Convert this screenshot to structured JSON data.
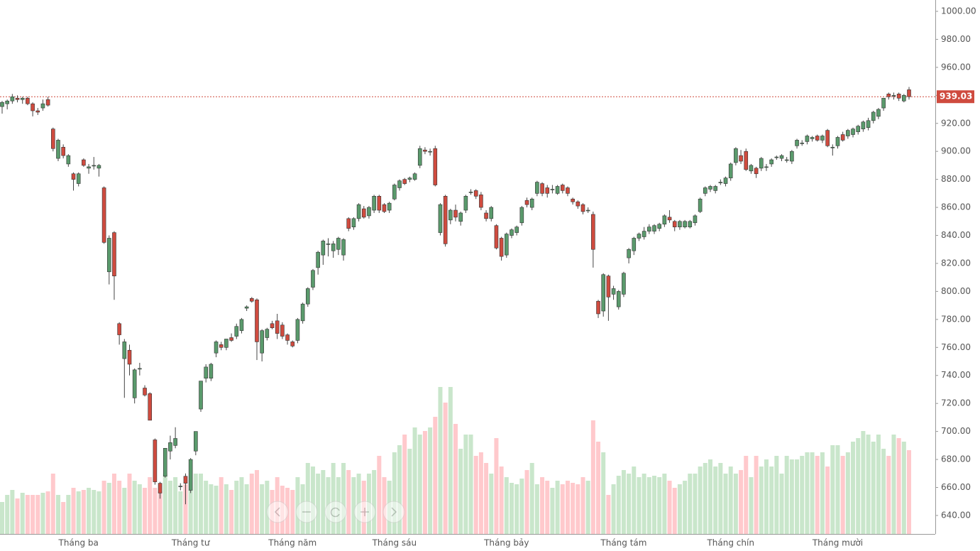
{
  "chart_data": {
    "type": "candlestick",
    "ylim": [
      626.8,
      1008.1
    ],
    "yticks": [
      {
        "value": 640,
        "label": "640.00"
      },
      {
        "value": 660,
        "label": "660.00"
      },
      {
        "value": 680,
        "label": "680.00"
      },
      {
        "value": 700,
        "label": "700.00"
      },
      {
        "value": 720,
        "label": "720.00"
      },
      {
        "value": 740,
        "label": "740.00"
      },
      {
        "value": 760,
        "label": "760.00"
      },
      {
        "value": 780,
        "label": "780.00"
      },
      {
        "value": 800,
        "label": "800.00"
      },
      {
        "value": 820,
        "label": "820.00"
      },
      {
        "value": 840,
        "label": "840.00"
      },
      {
        "value": 860,
        "label": "860.00"
      },
      {
        "value": 880,
        "label": "880.00"
      },
      {
        "value": 900,
        "label": "900.00"
      },
      {
        "value": 920,
        "label": "920.00"
      },
      {
        "value": 940,
        "label": "940.00"
      },
      {
        "value": 960,
        "label": "960.00"
      },
      {
        "value": 980,
        "label": "980.00"
      },
      {
        "value": 1000,
        "label": "1000.00"
      }
    ],
    "up_color": "#5a9a6c",
    "down_color": "#cf4b3f",
    "volume_up_color": "#c9e6cb",
    "volume_down_color": "#ffc9cc",
    "last_price_line": true,
    "categories": [
      null,
      null,
      null,
      null,
      null,
      null,
      null,
      null,
      null,
      null,
      null,
      null,
      null,
      null,
      null,
      "Tháng ba",
      null,
      null,
      null,
      null,
      null,
      null,
      null,
      null,
      null,
      null,
      null,
      null,
      null,
      null,
      null,
      null,
      null,
      null,
      null,
      null,
      null,
      "Tháng tư",
      null,
      null,
      null,
      null,
      null,
      null,
      null,
      null,
      null,
      null,
      null,
      null,
      null,
      null,
      null,
      null,
      null,
      null,
      null,
      "Tháng năm",
      null,
      null,
      null,
      null,
      null,
      null,
      null,
      null,
      null,
      null,
      null,
      null,
      null,
      null,
      null,
      null,
      null,
      null,
      null,
      "Tháng sáu",
      null,
      null,
      null,
      null,
      null,
      null,
      null,
      null,
      null,
      null,
      null,
      null,
      null,
      null,
      null,
      null,
      null,
      null,
      null,
      null,
      null,
      "Tháng bảy",
      null,
      null,
      null,
      null,
      null,
      null,
      null,
      null,
      null,
      null,
      null,
      null,
      null,
      null,
      null,
      null,
      null,
      null,
      null,
      null,
      null,
      null,
      "Tháng tám",
      null,
      null,
      null,
      null,
      null,
      null,
      null,
      null,
      null,
      null,
      null,
      null,
      null,
      null,
      null,
      null,
      null,
      null,
      null,
      null,
      "Tháng chín",
      null,
      null,
      null,
      null,
      null,
      null,
      null,
      null,
      null,
      null,
      null,
      null,
      null,
      null,
      null,
      null,
      null,
      null,
      null,
      null,
      "Tháng mười",
      null,
      null,
      null,
      null,
      null,
      null,
      null,
      null,
      null,
      null,
      null,
      null,
      null,
      null
    ],
    "ohlc": [
      [
        932,
        936,
        927,
        935
      ],
      [
        934,
        937,
        930,
        936
      ],
      [
        936,
        941,
        934,
        939
      ],
      [
        938,
        940,
        935,
        937
      ],
      [
        937,
        939,
        934,
        938
      ],
      [
        938,
        939,
        933,
        934
      ],
      [
        934,
        935,
        925,
        929
      ],
      [
        929,
        931,
        926,
        928
      ],
      [
        931,
        937,
        929,
        934
      ],
      [
        937,
        939,
        932,
        933
      ],
      [
        916,
        917,
        900,
        902
      ],
      [
        895,
        909,
        893,
        908
      ],
      [
        903,
        905,
        895,
        897
      ],
      [
        891,
        898,
        889,
        897
      ],
      [
        884,
        885,
        872,
        880
      ],
      [
        877,
        885,
        875,
        884
      ],
      [
        894,
        895,
        889,
        890
      ],
      [
        888,
        891,
        884,
        889
      ],
      [
        890,
        896,
        887,
        890
      ],
      [
        888,
        891,
        882,
        890
      ],
      [
        874,
        875,
        834,
        835
      ],
      [
        814,
        840,
        805,
        838
      ],
      [
        842,
        843,
        794,
        811
      ],
      [
        777,
        778,
        762,
        769
      ],
      [
        752,
        766,
        724,
        764
      ],
      [
        758,
        762,
        740,
        748
      ],
      [
        724,
        745,
        720,
        744
      ],
      [
        745,
        749,
        740,
        745
      ],
      [
        731,
        733,
        725,
        726
      ],
      [
        727,
        728,
        708,
        708
      ],
      [
        694,
        695,
        662,
        664
      ],
      [
        663,
        664,
        652,
        656
      ],
      [
        668,
        688,
        667,
        688
      ],
      [
        686,
        697,
        680,
        692
      ],
      [
        690,
        703,
        688,
        695
      ],
      [
        661,
        663,
        658,
        661
      ],
      [
        668,
        670,
        648,
        663
      ],
      [
        658,
        681,
        656,
        680
      ],
      [
        686,
        700,
        683,
        700
      ],
      [
        716,
        736,
        714,
        736
      ],
      [
        738,
        748,
        735,
        746
      ],
      [
        738,
        749,
        736,
        748
      ],
      [
        756,
        765,
        753,
        764
      ],
      [
        762,
        764,
        758,
        760
      ],
      [
        760,
        766,
        758,
        766
      ],
      [
        767,
        770,
        764,
        765
      ],
      [
        768,
        777,
        766,
        775
      ],
      [
        772,
        781,
        770,
        780
      ],
      [
        788,
        790,
        786,
        789
      ],
      [
        795,
        796,
        792,
        793
      ],
      [
        794,
        795,
        751,
        764
      ],
      [
        756,
        773,
        750,
        772
      ],
      [
        767,
        774,
        765,
        773
      ],
      [
        777,
        779,
        773,
        774
      ],
      [
        779,
        784,
        766,
        770
      ],
      [
        776,
        778,
        766,
        768
      ],
      [
        769,
        770,
        762,
        765
      ],
      [
        764,
        765,
        760,
        761
      ],
      [
        765,
        781,
        763,
        780
      ],
      [
        779,
        792,
        777,
        791
      ],
      [
        791,
        803,
        789,
        802
      ],
      [
        803,
        816,
        801,
        815
      ],
      [
        817,
        829,
        812,
        828
      ],
      [
        826,
        837,
        819,
        836
      ],
      [
        834,
        838,
        825,
        834
      ],
      [
        829,
        836,
        824,
        834
      ],
      [
        830,
        839,
        826,
        838
      ],
      [
        826,
        838,
        822,
        837
      ],
      [
        852,
        853,
        843,
        845
      ],
      [
        846,
        853,
        844,
        852
      ],
      [
        852,
        863,
        850,
        862
      ],
      [
        859,
        861,
        852,
        853
      ],
      [
        854,
        861,
        852,
        860
      ],
      [
        858,
        869,
        856,
        868
      ],
      [
        868,
        869,
        856,
        858
      ],
      [
        862,
        863,
        856,
        857
      ],
      [
        858,
        864,
        856,
        863
      ],
      [
        866,
        877,
        865,
        876
      ],
      [
        874,
        880,
        872,
        879
      ],
      [
        880,
        881,
        876,
        877
      ],
      [
        880,
        882,
        878,
        881
      ],
      [
        880,
        885,
        879,
        884
      ],
      [
        890,
        904,
        888,
        902
      ],
      [
        901,
        903,
        898,
        900
      ],
      [
        900,
        902,
        897,
        900
      ],
      [
        902,
        904,
        875,
        876
      ],
      [
        842,
        863,
        840,
        862
      ],
      [
        868,
        869,
        832,
        834
      ],
      [
        851,
        859,
        848,
        858
      ],
      [
        858,
        862,
        850,
        853
      ],
      [
        850,
        857,
        847,
        856
      ],
      [
        858,
        869,
        856,
        868
      ],
      [
        871,
        873,
        869,
        871
      ],
      [
        872,
        873,
        866,
        868
      ],
      [
        869,
        871,
        858,
        860
      ],
      [
        856,
        858,
        850,
        852
      ],
      [
        852,
        861,
        850,
        860
      ],
      [
        847,
        848,
        830,
        831
      ],
      [
        838,
        839,
        822,
        825
      ],
      [
        826,
        842,
        824,
        841
      ],
      [
        840,
        845,
        838,
        844
      ],
      [
        842,
        847,
        840,
        846
      ],
      [
        849,
        861,
        847,
        860
      ],
      [
        865,
        867,
        860,
        862
      ],
      [
        860,
        867,
        858,
        866
      ],
      [
        870,
        879,
        868,
        878
      ],
      [
        877,
        878,
        868,
        870
      ],
      [
        874,
        876,
        867,
        870
      ],
      [
        873,
        876,
        870,
        873
      ],
      [
        870,
        876,
        869,
        875
      ],
      [
        876,
        877,
        870,
        872
      ],
      [
        874,
        875,
        868,
        870
      ],
      [
        866,
        867,
        862,
        864
      ],
      [
        864,
        865,
        859,
        861
      ],
      [
        862,
        863,
        855,
        857
      ],
      [
        858,
        860,
        856,
        858
      ],
      [
        855,
        857,
        817,
        830
      ],
      [
        793,
        794,
        781,
        784
      ],
      [
        786,
        813,
        782,
        812
      ],
      [
        811,
        812,
        779,
        796
      ],
      [
        798,
        804,
        794,
        802
      ],
      [
        789,
        801,
        787,
        800
      ],
      [
        798,
        814,
        796,
        813
      ],
      [
        824,
        831,
        820,
        830
      ],
      [
        829,
        839,
        826,
        838
      ],
      [
        838,
        842,
        836,
        841
      ],
      [
        839,
        846,
        837,
        843
      ],
      [
        843,
        848,
        841,
        846
      ],
      [
        843,
        848,
        841,
        847
      ],
      [
        845,
        849,
        843,
        848
      ],
      [
        848,
        855,
        846,
        854
      ],
      [
        853,
        858,
        849,
        851
      ],
      [
        850,
        851,
        843,
        846
      ],
      [
        846,
        851,
        844,
        850
      ],
      [
        846,
        851,
        845,
        850
      ],
      [
        846,
        851,
        845,
        850
      ],
      [
        849,
        855,
        847,
        854
      ],
      [
        857,
        867,
        856,
        866
      ],
      [
        870,
        875,
        868,
        874
      ],
      [
        873,
        876,
        871,
        875
      ],
      [
        872,
        876,
        870,
        875
      ],
      [
        878,
        880,
        876,
        878
      ],
      [
        877,
        882,
        875,
        881
      ],
      [
        881,
        892,
        879,
        891
      ],
      [
        892,
        903,
        890,
        902
      ],
      [
        897,
        901,
        891,
        893
      ],
      [
        900,
        902,
        886,
        887
      ],
      [
        886,
        891,
        884,
        890
      ],
      [
        888,
        889,
        881,
        884
      ],
      [
        888,
        896,
        886,
        895
      ],
      [
        889,
        891,
        886,
        889
      ],
      [
        891,
        895,
        889,
        894
      ],
      [
        896,
        897,
        894,
        896
      ],
      [
        895,
        898,
        893,
        897
      ],
      [
        894,
        896,
        892,
        894
      ],
      [
        893,
        901,
        891,
        900
      ],
      [
        904,
        909,
        902,
        908
      ],
      [
        906,
        908,
        904,
        906
      ],
      [
        907,
        912,
        905,
        911
      ],
      [
        909,
        911,
        907,
        910
      ],
      [
        911,
        912,
        907,
        908
      ],
      [
        908,
        912,
        906,
        911
      ],
      [
        915,
        916,
        903,
        904
      ],
      [
        903,
        905,
        897,
        903
      ],
      [
        904,
        911,
        902,
        910
      ],
      [
        912,
        914,
        907,
        908
      ],
      [
        911,
        916,
        909,
        915
      ],
      [
        912,
        917,
        910,
        916
      ],
      [
        914,
        919,
        912,
        918
      ],
      [
        916,
        922,
        914,
        921
      ],
      [
        917,
        924,
        915,
        922
      ],
      [
        922,
        929,
        920,
        928
      ],
      [
        925,
        931,
        923,
        930
      ],
      [
        931,
        938,
        929,
        938
      ],
      [
        941,
        942,
        937,
        939
      ],
      [
        940,
        942,
        937,
        940
      ],
      [
        941,
        942,
        936,
        938
      ],
      [
        936,
        941,
        935,
        940
      ],
      [
        944,
        946,
        937,
        939.03
      ]
    ],
    "volume": [
      45,
      55,
      62,
      50,
      58,
      55,
      55,
      55,
      58,
      60,
      85,
      55,
      45,
      55,
      65,
      60,
      62,
      65,
      62,
      60,
      75,
      72,
      85,
      75,
      65,
      85,
      75,
      70,
      65,
      80,
      65,
      60,
      85,
      75,
      80,
      60,
      70,
      62,
      85,
      85,
      75,
      70,
      68,
      80,
      70,
      62,
      75,
      80,
      70,
      85,
      90,
      70,
      75,
      62,
      80,
      68,
      65,
      62,
      80,
      70,
      100,
      95,
      85,
      90,
      80,
      100,
      80,
      100,
      90,
      80,
      85,
      75,
      85,
      90,
      110,
      80,
      75,
      115,
      125,
      140,
      120,
      150,
      140,
      145,
      150,
      165,
      207,
      185,
      207,
      155,
      120,
      140,
      140,
      110,
      115,
      100,
      85,
      135,
      95,
      80,
      72,
      70,
      78,
      90,
      100,
      70,
      80,
      75,
      65,
      75,
      70,
      75,
      72,
      70,
      80,
      75,
      160,
      130,
      115,
      55,
      70,
      82,
      90,
      85,
      95,
      80,
      85,
      80,
      82,
      80,
      85,
      75,
      65,
      70,
      75,
      85,
      85,
      95,
      100,
      105,
      95,
      100,
      85,
      95,
      85,
      90,
      110,
      80,
      110,
      95,
      105,
      95,
      110,
      85,
      110,
      105,
      105,
      110,
      115,
      115,
      110,
      115,
      95,
      125,
      125,
      110,
      115,
      130,
      135,
      145,
      140,
      130,
      140,
      120,
      110,
      140,
      135,
      130,
      118
    ]
  }
}
